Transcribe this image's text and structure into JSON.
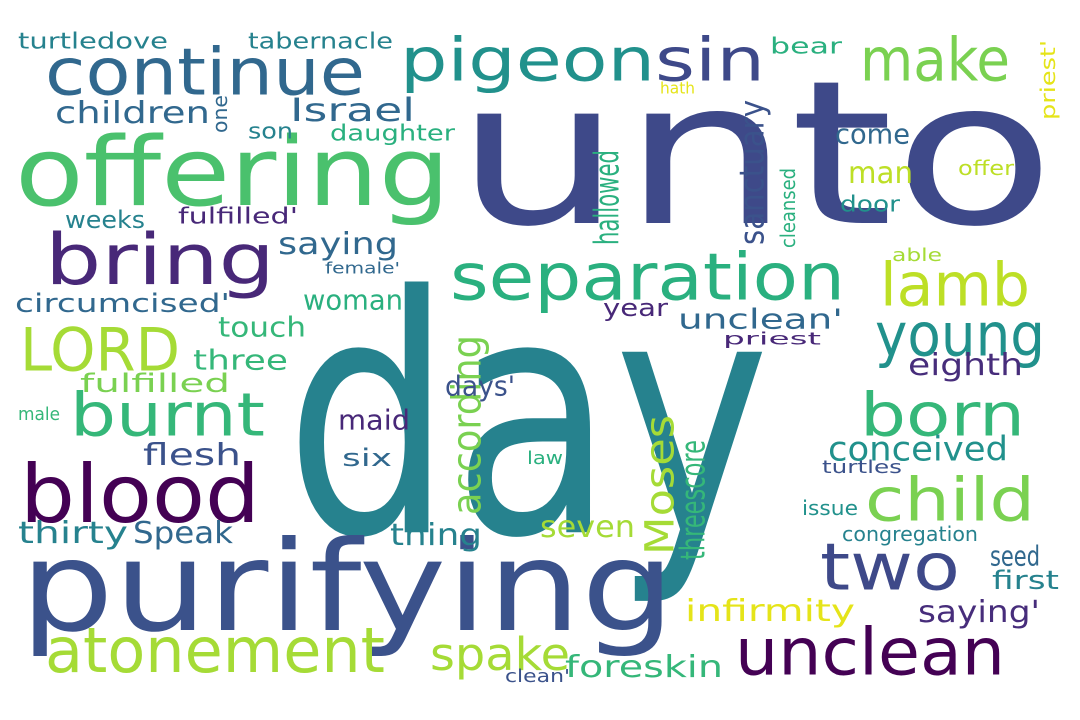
{
  "words": [
    {
      "text": "unto",
      "color": "#3e4989"
    },
    {
      "text": "day",
      "color": "#26828e"
    },
    {
      "text": "purifying",
      "color": "#3b528b"
    },
    {
      "text": "offering",
      "color": "#4ac16d"
    },
    {
      "text": "continue",
      "color": "#31688e"
    },
    {
      "text": "bring",
      "color": "#482878"
    },
    {
      "text": "blood",
      "color": "#440154"
    },
    {
      "text": "pigeon",
      "color": "#21918c"
    },
    {
      "text": "sin",
      "color": "#3e4989"
    },
    {
      "text": "make",
      "color": "#7ad151"
    },
    {
      "text": "separation",
      "color": "#2ab07f"
    },
    {
      "text": "unclean",
      "color": "#440154"
    },
    {
      "text": "two",
      "color": "#3e4989"
    },
    {
      "text": "atonement",
      "color": "#a5db36"
    },
    {
      "text": "burnt",
      "color": "#35b779"
    },
    {
      "text": "LORD",
      "color": "#a5db36"
    },
    {
      "text": "child",
      "color": "#7ad151"
    },
    {
      "text": "born",
      "color": "#35b779"
    },
    {
      "text": "young",
      "color": "#21918c"
    },
    {
      "text": "lamb",
      "color": "#bddf26"
    },
    {
      "text": "Moses",
      "color": "#a5db36"
    },
    {
      "text": "spake",
      "color": "#a5db36"
    },
    {
      "text": "Israel",
      "color": "#31688e"
    },
    {
      "text": "children",
      "color": "#31688e"
    },
    {
      "text": "turtledove",
      "color": "#26828e"
    },
    {
      "text": "tabernacle",
      "color": "#26828e"
    },
    {
      "text": "bear",
      "color": "#2ab07f"
    },
    {
      "text": "hath",
      "color": "#e5e419"
    },
    {
      "text": "priest'",
      "color": "#e5e419"
    },
    {
      "text": "one",
      "color": "#31688e"
    },
    {
      "text": "son",
      "color": "#26828e"
    },
    {
      "text": "daughter",
      "color": "#2ab07f"
    },
    {
      "text": "hallowed",
      "color": "#2ab07f"
    },
    {
      "text": "sanctuary",
      "color": "#3b528b"
    },
    {
      "text": "come",
      "color": "#31688e"
    },
    {
      "text": "man",
      "color": "#bddf26"
    },
    {
      "text": "offer",
      "color": "#bddf26"
    },
    {
      "text": "cleansed",
      "color": "#2ab07f"
    },
    {
      "text": "door",
      "color": "#21918c"
    },
    {
      "text": "weeks",
      "color": "#26828e"
    },
    {
      "text": "fulfilled'",
      "color": "#482878"
    },
    {
      "text": "saying",
      "color": "#31688e"
    },
    {
      "text": "able",
      "color": "#a5db36"
    },
    {
      "text": "female'",
      "color": "#31688e"
    },
    {
      "text": "circumcised'",
      "color": "#31688e"
    },
    {
      "text": "woman",
      "color": "#2ab07f"
    },
    {
      "text": "year",
      "color": "#482878"
    },
    {
      "text": "unclean'",
      "color": "#31688e"
    },
    {
      "text": "touch",
      "color": "#35b779"
    },
    {
      "text": "priest",
      "color": "#482878"
    },
    {
      "text": "three",
      "color": "#35b779"
    },
    {
      "text": "eighth",
      "color": "#472d7b"
    },
    {
      "text": "fulfilled",
      "color": "#7ad151"
    },
    {
      "text": "according",
      "color": "#7ad151"
    },
    {
      "text": "days'",
      "color": "#3b528b"
    },
    {
      "text": "male",
      "color": "#35b779"
    },
    {
      "text": "maid",
      "color": "#482878"
    },
    {
      "text": "conceived",
      "color": "#21918c"
    },
    {
      "text": "threescore",
      "color": "#35b779"
    },
    {
      "text": "flesh",
      "color": "#3b528b"
    },
    {
      "text": "six",
      "color": "#31688e"
    },
    {
      "text": "law",
      "color": "#2ab07f"
    },
    {
      "text": "turtles",
      "color": "#3b528b"
    },
    {
      "text": "issue",
      "color": "#21918c"
    },
    {
      "text": "thirty",
      "color": "#26828e"
    },
    {
      "text": "Speak",
      "color": "#31688e"
    },
    {
      "text": "thing",
      "color": "#26828e"
    },
    {
      "text": "seven",
      "color": "#a5db36"
    },
    {
      "text": "congregation",
      "color": "#26828e"
    },
    {
      "text": "seed",
      "color": "#31688e"
    },
    {
      "text": "first",
      "color": "#26828e"
    },
    {
      "text": "saying'",
      "color": "#472d7b"
    },
    {
      "text": "infirmity",
      "color": "#e5e419"
    },
    {
      "text": "foreskin",
      "color": "#35b779"
    },
    {
      "text": "clean'",
      "color": "#3b528b"
    }
  ]
}
